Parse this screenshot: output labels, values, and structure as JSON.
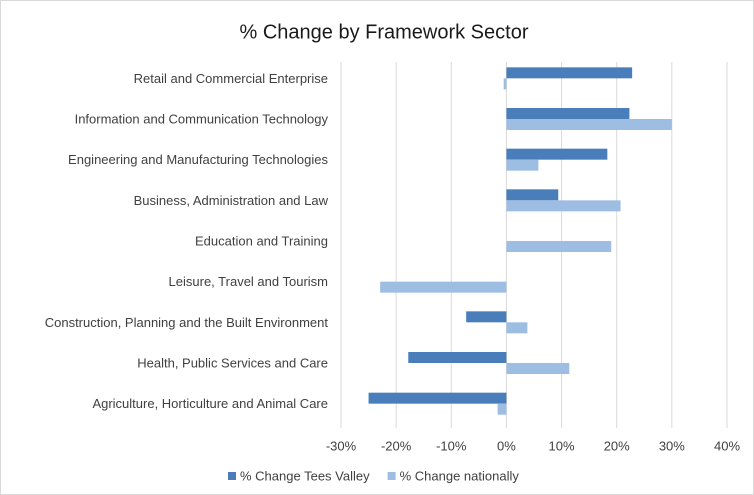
{
  "chart_data": {
    "type": "bar",
    "orientation": "horizontal",
    "title": "% Change by Framework Sector",
    "categories": [
      "Retail and Commercial Enterprise",
      "Information and Communication Technology",
      "Engineering and Manufacturing Technologies",
      "Business, Administration and Law",
      "Education and Training",
      "Leisure, Travel and Tourism",
      "Construction, Planning and the Built Environment",
      "Health, Public Services and Care",
      "Agriculture, Horticulture and Animal Care"
    ],
    "series": [
      {
        "name": "% Change Tees Valley",
        "color": "#4a7ebb",
        "values": [
          22.8,
          22.3,
          18.3,
          9.4,
          null,
          null,
          -7.3,
          -17.8,
          -25
        ]
      },
      {
        "name": "% Change nationally",
        "color": "#9dbde2",
        "values": [
          -0.5,
          30,
          5.8,
          20.7,
          19,
          -22.9,
          3.8,
          11.4,
          -1.6
        ]
      }
    ],
    "xlim": [
      -30,
      40
    ],
    "xticks": [
      {
        "value": -30,
        "label": "-30%"
      },
      {
        "value": -20,
        "label": "-20%"
      },
      {
        "value": -10,
        "label": "-10%"
      },
      {
        "value": 0,
        "label": "0%"
      },
      {
        "value": 10,
        "label": "10%"
      },
      {
        "value": 20,
        "label": "20%"
      },
      {
        "value": 30,
        "label": "30%"
      },
      {
        "value": 40,
        "label": "40%"
      }
    ],
    "grid": true,
    "legend": "bottom"
  }
}
